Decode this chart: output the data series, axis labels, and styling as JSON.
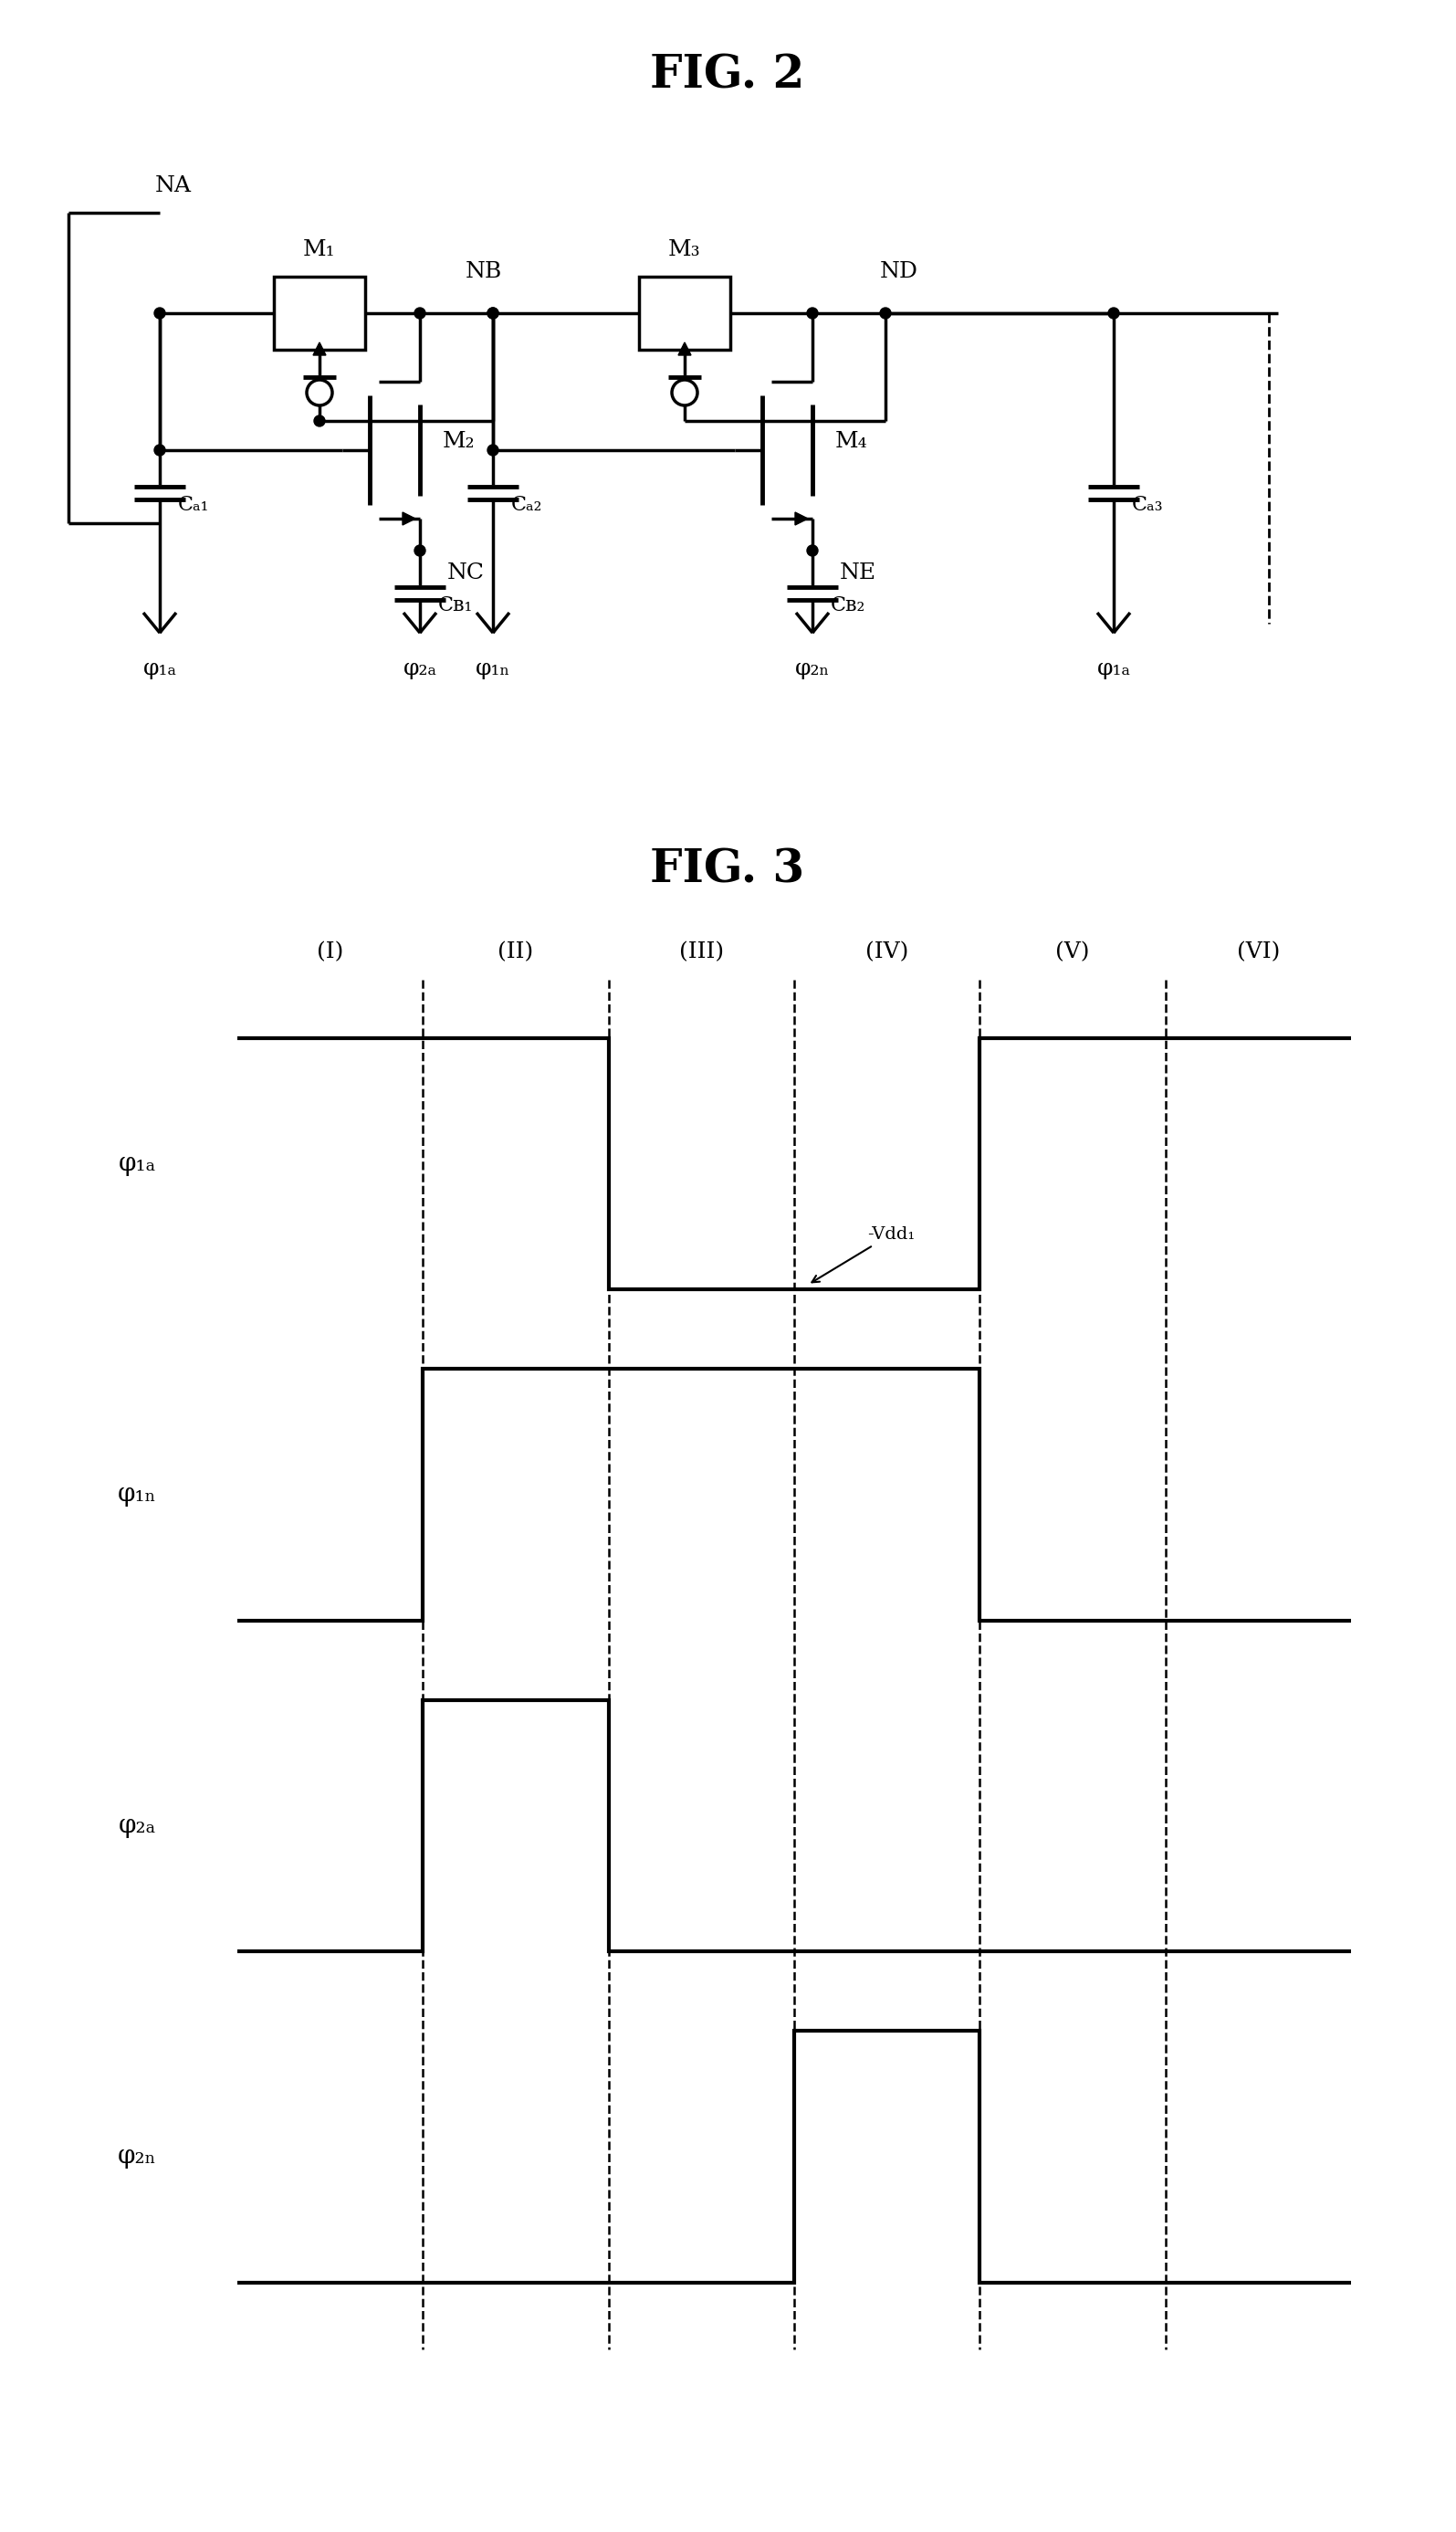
{
  "fig2_title": "FIG. 2",
  "fig3_title": "FIG. 3",
  "background_color": "#ffffff",
  "line_color": "#000000",
  "lw": 2.5,
  "lw_thick": 3.5,
  "title_fontsize": 32,
  "label_fontsize": 18,
  "phase_labels": [
    "(I)",
    "(II)",
    "(III)",
    "(IV)",
    "(V)",
    "(VI)"
  ],
  "sig_labels": [
    "φ₁ₐ",
    "φ₁ₙ",
    "φ₂ₐ",
    "φ₂ₙ"
  ],
  "bottom_labels": [
    "φ₁ₐ",
    "φ₂ₐ",
    "φ₁ₙ",
    "φ₂ₙ",
    "φ₁ₐ"
  ],
  "node_labels": [
    "NA",
    "M₁",
    "NB",
    "M₃",
    "ND"
  ],
  "transistor_labels": [
    "M₂",
    "M₄"
  ],
  "cap_labels": [
    "Cₐ₁",
    "Cʙ₁",
    "Cₐ₂",
    "Cʙ₂",
    "Cₐ₃"
  ],
  "nc_ne_labels": [
    "NC",
    "NE"
  ],
  "vdd_label": "-Vdd₁"
}
